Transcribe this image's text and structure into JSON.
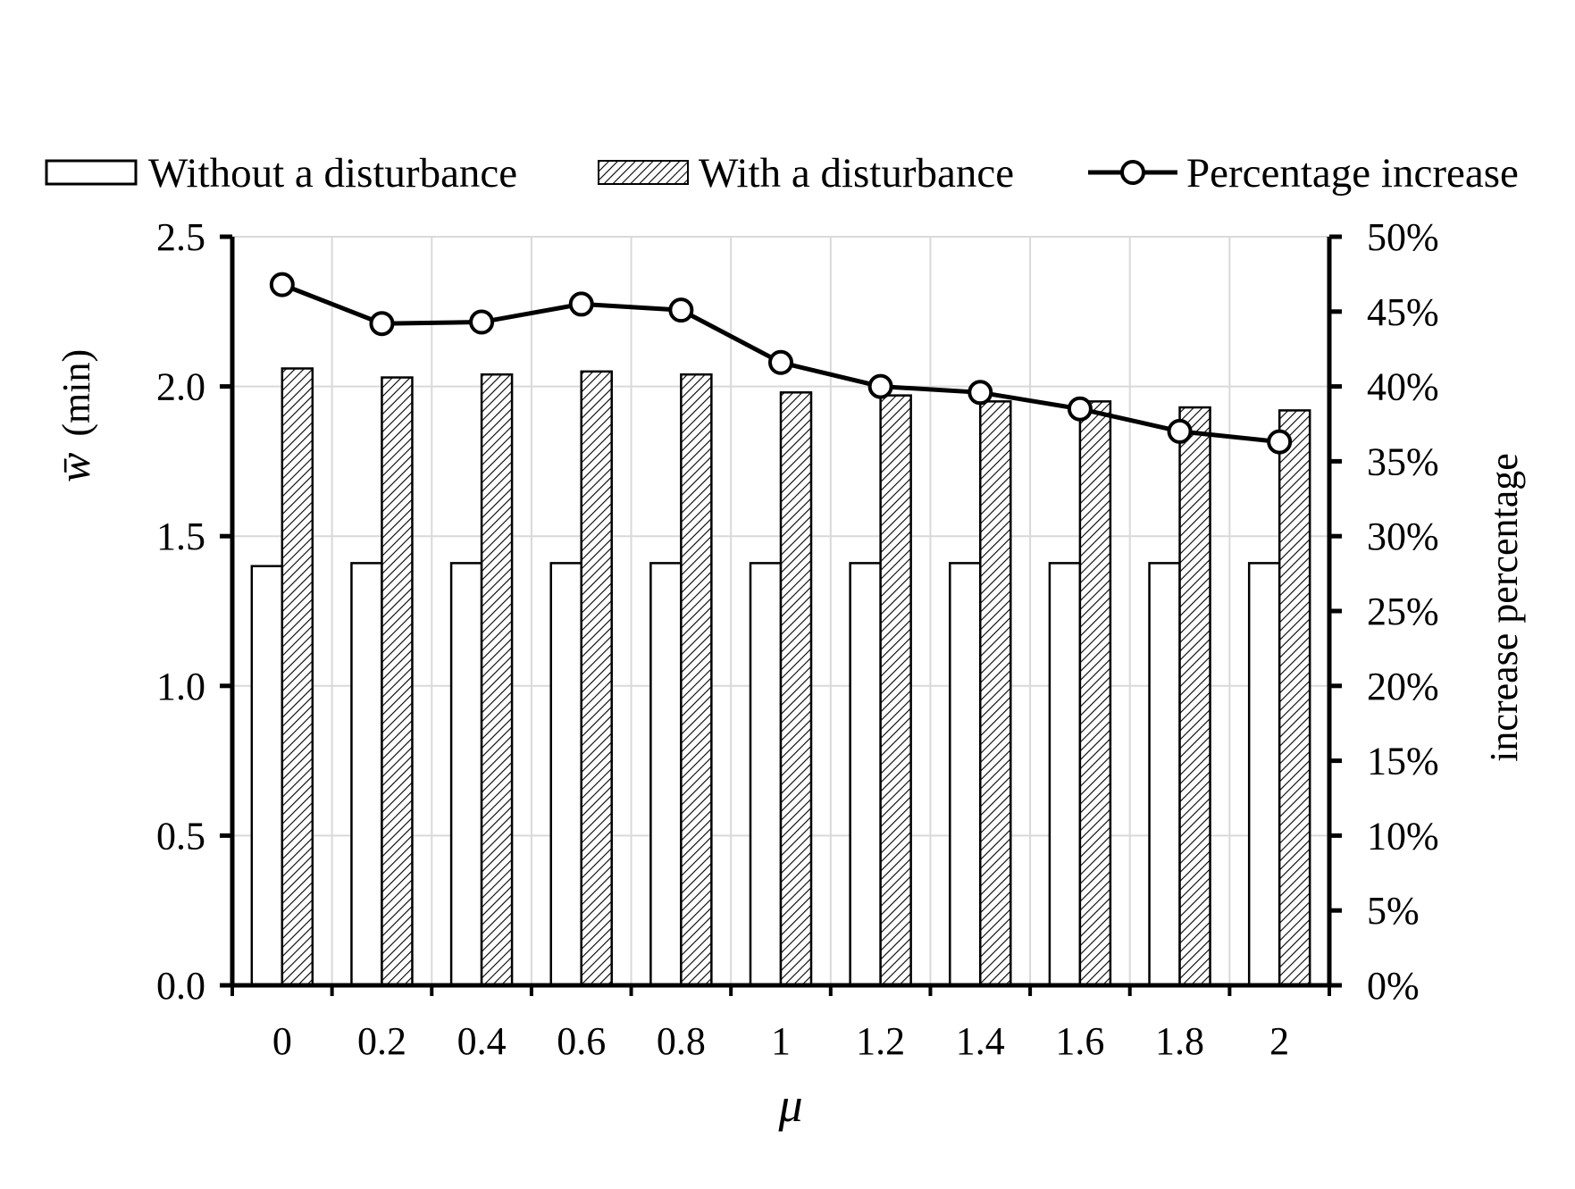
{
  "chart_data": {
    "type": "bar",
    "categories": [
      "0",
      "0.2",
      "0.4",
      "0.6",
      "0.8",
      "1",
      "1.2",
      "1.4",
      "1.6",
      "1.8",
      "2"
    ],
    "series": [
      {
        "name": "Without a disturbance",
        "type": "bar",
        "axis": "left",
        "pattern": "none",
        "values": [
          1.4,
          1.41,
          1.41,
          1.41,
          1.41,
          1.41,
          1.41,
          1.41,
          1.41,
          1.41,
          1.41
        ]
      },
      {
        "name": "With a disturbance",
        "type": "bar",
        "axis": "left",
        "pattern": "diagonal-hatch",
        "values": [
          2.06,
          2.03,
          2.04,
          2.05,
          2.04,
          1.98,
          1.97,
          1.95,
          1.95,
          1.93,
          1.92
        ]
      },
      {
        "name": "Percentage increase",
        "type": "line",
        "axis": "right",
        "marker": "open-circle",
        "values": [
          46.8,
          44.2,
          44.3,
          45.5,
          45.1,
          41.6,
          40.0,
          39.6,
          38.5,
          37.0,
          36.3
        ]
      }
    ],
    "xlabel": "μ",
    "ylabel_var": "w̄",
    "ylabel_unit": "(min)",
    "y2label": "increase percentage",
    "ylim": [
      0,
      2.5
    ],
    "yticks": [
      "0.0",
      "0.5",
      "1.0",
      "1.5",
      "2.0",
      "2.5"
    ],
    "y2lim": [
      0,
      50
    ],
    "y2ticks": [
      "0%",
      "5%",
      "10%",
      "15%",
      "20%",
      "25%",
      "30%",
      "35%",
      "40%",
      "45%",
      "50%"
    ],
    "grid": true,
    "legend_position": "top"
  }
}
